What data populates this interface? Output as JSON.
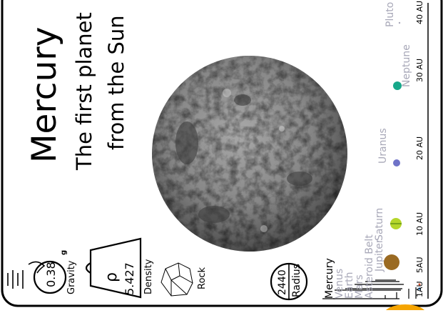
{
  "card": {
    "title": "Mercury",
    "subtitle_line1": "The first planet",
    "subtitle_line2": "from the Sun"
  },
  "stats": {
    "gravity": {
      "value": "0.38",
      "unit": "g",
      "label": "Gravity"
    },
    "density": {
      "symbol": "ρ",
      "value": "5.427",
      "label": "Density"
    },
    "composition": {
      "label": "Rock"
    },
    "radius": {
      "value": "2440",
      "label": "Radius"
    }
  },
  "scale": {
    "ticks": [
      "1AU",
      "5AU",
      "10 AU",
      "20 AU",
      "30 AU",
      "40 AU"
    ],
    "inner_labels": [
      "Mercury",
      "Venus",
      "Earth",
      "Mars",
      "Asteroid Belt",
      "Jupiter"
    ],
    "outer_labels": [
      "Saturn",
      "Uranus",
      "Neptune",
      "Pluto"
    ]
  },
  "colors": {
    "highlight_text": "#000000",
    "dim_text": "#a8a8b8",
    "jupiter": "#9a6a22",
    "saturn": "#b5d62a",
    "uranus": "#6f73c8",
    "neptune": "#17a88a",
    "sun": "#f5a400"
  },
  "icons": [
    "apple-falling-icon",
    "weight-icon",
    "rock-icon"
  ]
}
